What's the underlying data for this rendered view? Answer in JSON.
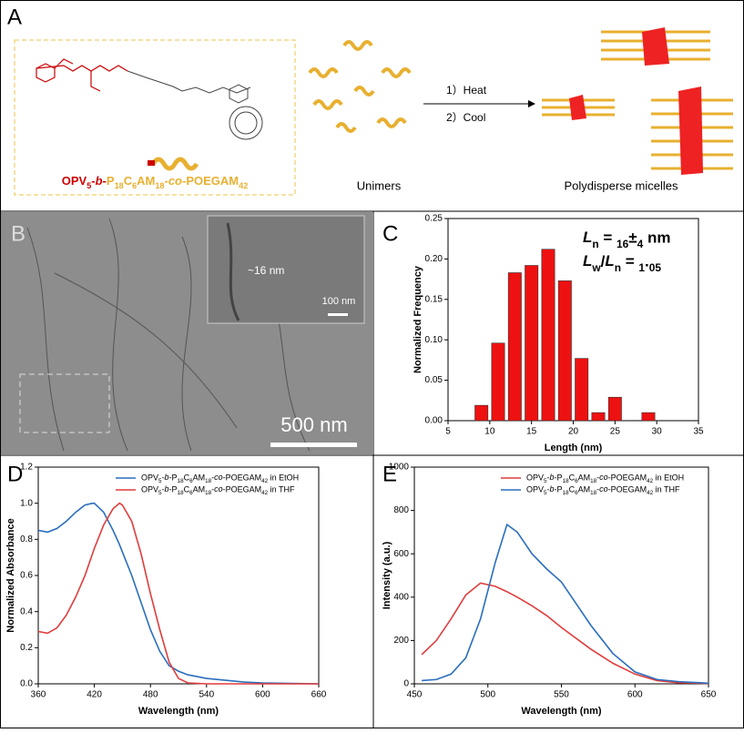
{
  "panel_a": {
    "letter": "A",
    "molecule_label_parts": [
      "OPV5-b-",
      "P18C6AM18-co-POEGAM42"
    ],
    "unimers": "Unimers",
    "step1": "1）Heat",
    "step2": "2）Cool",
    "micelles": "Polydisperse micelles"
  },
  "panel_b": {
    "letter": "B",
    "width_label": "~16 nm",
    "inset_scale": "100 nm",
    "scale": "500 nm"
  },
  "chart_data": [
    {
      "type": "histogram",
      "letter": "C",
      "x_label": "Length (nm)",
      "y_label": "Normalized Frequency",
      "color": "#ee1111",
      "bins": [
        8,
        10,
        12,
        14,
        16,
        18,
        20,
        22,
        24,
        26,
        28,
        30
      ],
      "values": [
        0.019,
        0.096,
        0.183,
        0.192,
        0.212,
        0.173,
        0.077,
        0.01,
        0.029,
        0,
        0.01
      ],
      "xlim": [
        5,
        35
      ],
      "xticks": [
        5,
        10,
        15,
        20,
        25,
        30,
        35
      ],
      "ylim": [
        0,
        0.25
      ],
      "yticks": [
        {
          "value": 0,
          "label": "0.00"
        },
        0.05,
        {
          "value": 0.1,
          "label": "0.10"
        },
        0.15,
        {
          "value": 0.2,
          "label": "0.20"
        },
        0.25
      ],
      "annotations": [
        "Ln = 16±4 nm",
        "Lw/Ln = 1.05"
      ]
    },
    {
      "type": "line",
      "letter": "D",
      "x_label": "Wavelength (nm)",
      "y_label": "Normalized Absorbance",
      "x": [
        360,
        370,
        380,
        390,
        400,
        410,
        418,
        420,
        430,
        440,
        447,
        450,
        460,
        470,
        480,
        490,
        500,
        510,
        520,
        540,
        560,
        580,
        600,
        630,
        660
      ],
      "series": [
        {
          "name": "OPV5-b-P18C6AM18-co-POEGAM42 in EtOH",
          "color": "#2a6ebd",
          "values": [
            0.85,
            0.84,
            0.86,
            0.9,
            0.95,
            0.99,
            1.0,
            1.0,
            0.95,
            0.85,
            0.77,
            0.73,
            0.6,
            0.45,
            0.3,
            0.18,
            0.1,
            0.07,
            0.05,
            0.03,
            0.02,
            0.01,
            0.005,
            0.002,
            0
          ]
        },
        {
          "name": "OPV5-b-P18C6AM18-co-POEGAM42 in THF",
          "color": "#e03c3c",
          "values": [
            0.29,
            0.28,
            0.31,
            0.38,
            0.48,
            0.6,
            0.72,
            0.75,
            0.88,
            0.97,
            1.0,
            0.99,
            0.9,
            0.72,
            0.5,
            0.3,
            0.12,
            0.03,
            0.005,
            0,
            0,
            0,
            0,
            0,
            0
          ]
        }
      ],
      "xlim": [
        360,
        660
      ],
      "xticks": [
        360,
        420,
        480,
        540,
        600,
        660
      ],
      "ylim": [
        0,
        1.2
      ],
      "yticks": [
        {
          "value": 0,
          "label": "0.0"
        },
        0.2,
        0.4,
        0.6,
        0.8,
        {
          "value": 1,
          "label": "1.0"
        },
        1.2
      ]
    },
    {
      "type": "line",
      "letter": "E",
      "x_label": "Wavelength (nm)",
      "y_label": "Intensity (a.u.)",
      "x": [
        455,
        465,
        475,
        485,
        495,
        505,
        513,
        520,
        530,
        540,
        550,
        560,
        570,
        585,
        600,
        615,
        630,
        650
      ],
      "series": [
        {
          "name": "OPV5-b-P18C6AM18-co-POEGAM42 in EtOH",
          "color": "#e03c3c",
          "values": [
            135,
            200,
            300,
            410,
            465,
            450,
            425,
            400,
            360,
            315,
            260,
            210,
            160,
            95,
            45,
            15,
            5,
            2
          ]
        },
        {
          "name": "OPV5-b-P18C6AM18-co-POEGAM42 in THF",
          "color": "#2a6ebd",
          "values": [
            15,
            20,
            45,
            120,
            300,
            560,
            735,
            700,
            600,
            530,
            470,
            370,
            270,
            140,
            55,
            20,
            10,
            3
          ]
        }
      ],
      "xlim": [
        450,
        650
      ],
      "xticks": [
        450,
        500,
        550,
        600,
        650
      ],
      "ylim": [
        0,
        1000
      ],
      "yticks": [
        0,
        200,
        400,
        600,
        800,
        1000
      ]
    }
  ]
}
